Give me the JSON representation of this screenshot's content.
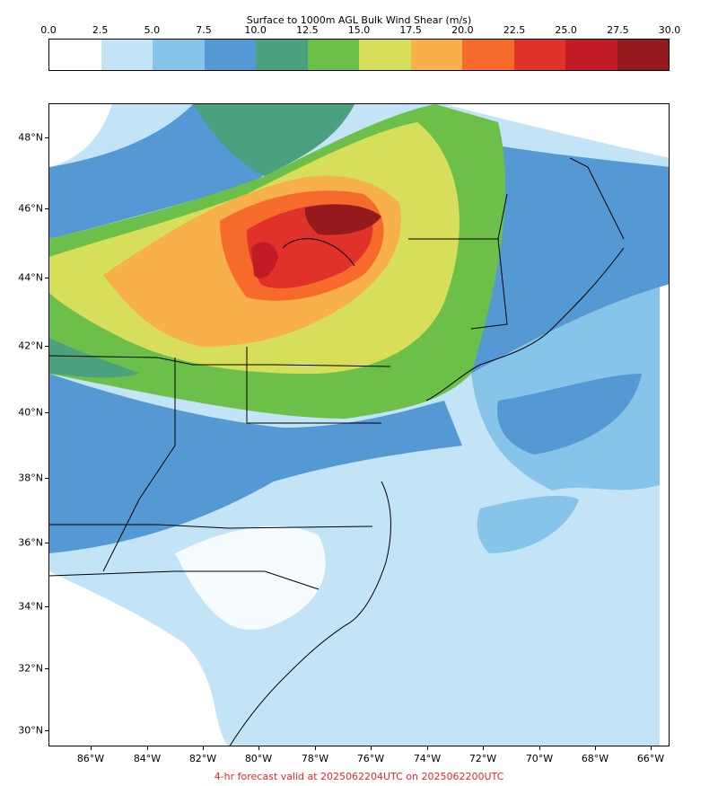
{
  "colorbar": {
    "title": "Surface to 1000m AGL Bulk Wind Shear (m/s)",
    "ticks": [
      "0.0",
      "2.5",
      "5.0",
      "7.5",
      "10.0",
      "12.5",
      "15.0",
      "17.5",
      "20.0",
      "22.5",
      "25.0",
      "27.5",
      "30.0"
    ],
    "colors": [
      "#ffffff",
      "#c2e4f6",
      "#87c4ea",
      "#5599d4",
      "#49a17f",
      "#6cc04a",
      "#d7df5a",
      "#f8b04a",
      "#f66a2b",
      "#e0322a",
      "#c11b26",
      "#951a1d"
    ]
  },
  "map": {
    "lat_labels": [
      "48°N",
      "46°N",
      "44°N",
      "42°N",
      "40°N",
      "38°N",
      "36°N",
      "34°N",
      "32°N",
      "30°N"
    ],
    "lon_labels": [
      "86°W",
      "84°W",
      "82°W",
      "80°W",
      "78°W",
      "76°W",
      "74°W",
      "72°W",
      "70°W",
      "68°W",
      "66°W"
    ]
  },
  "footer": "4-hr forecast valid at 2025062204UTC on 2025062200UTC"
}
